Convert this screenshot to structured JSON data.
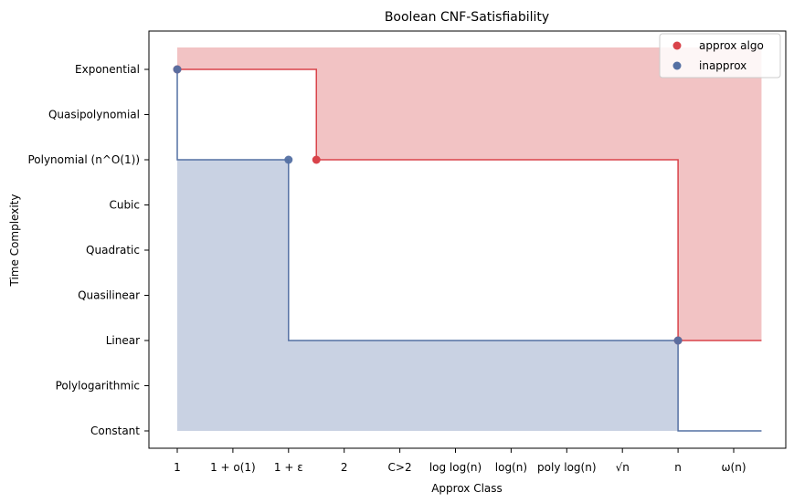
{
  "chart_data": {
    "type": "line",
    "title": "Boolean CNF-Satisfiability",
    "xlabel": "Approx Class",
    "ylabel": "Time Complexity",
    "x_categories": [
      "1",
      "1 + o(1)",
      "1 + ε",
      "2",
      "C>2",
      "log log(n)",
      "log(n)",
      "poly log(n)",
      "√n",
      "n",
      "ω(n)"
    ],
    "y_categories": [
      "Constant",
      "Polylogarithmic",
      "Linear",
      "Quasilinear",
      "Quadratic",
      "Cubic",
      "Polynomial (n^O(1))",
      "Quasipolynomial",
      "Exponential"
    ],
    "series": [
      {
        "name": "approx algo",
        "color": "#d9434a",
        "fill_color": "#f2c3c4",
        "points": [
          {
            "x": 0,
            "y": 8
          },
          {
            "x": 2.5,
            "y": 6
          },
          {
            "x": 9,
            "y": 2
          }
        ],
        "step_line": [
          [
            0,
            8
          ],
          [
            2.5,
            8
          ],
          [
            2.5,
            6
          ],
          [
            9,
            6
          ],
          [
            9,
            2
          ],
          [
            10.5,
            2
          ]
        ],
        "fill_region": "above line up to top band"
      },
      {
        "name": "inapprox",
        "color": "#5470a3",
        "fill_color": "#c9d2e3",
        "points": [
          {
            "x": 0,
            "y": 8
          },
          {
            "x": 2,
            "y": 6
          },
          {
            "x": 9,
            "y": 2
          }
        ],
        "step_line": [
          [
            0,
            8
          ],
          [
            0,
            6
          ],
          [
            2,
            6
          ],
          [
            2,
            2
          ],
          [
            9,
            2
          ],
          [
            9,
            0
          ],
          [
            10.5,
            0
          ]
        ],
        "fill_region": "below line down to baseline"
      }
    ],
    "legend_position": "top-right",
    "grid": false
  }
}
